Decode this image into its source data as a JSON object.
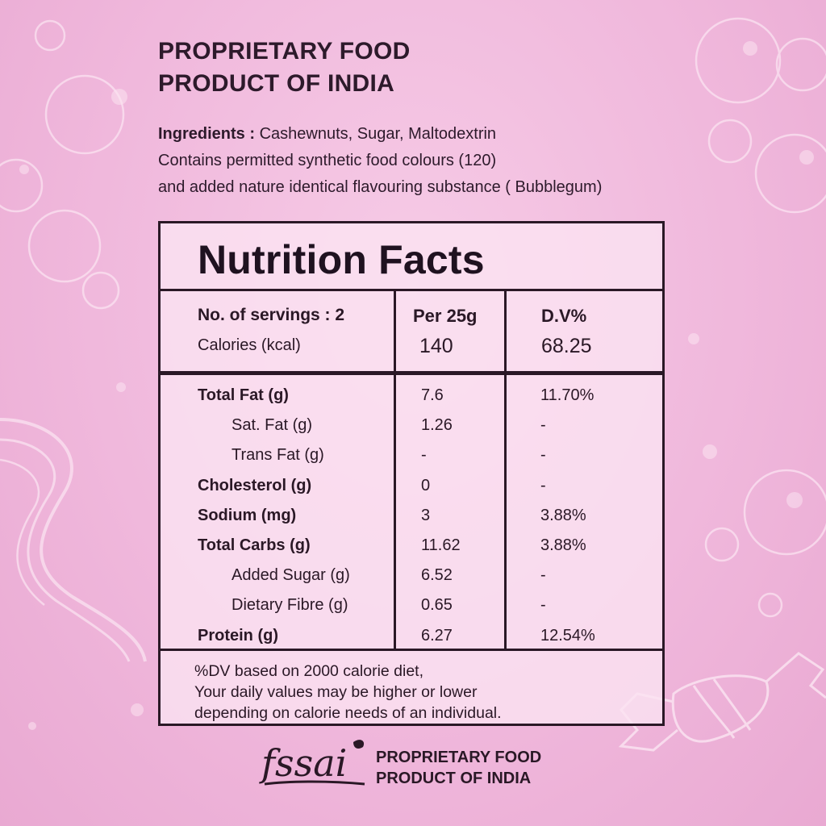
{
  "header": {
    "line1": "PROPRIETARY FOOD",
    "line2": "PRODUCT OF INDIA"
  },
  "ingredients": {
    "label": "Ingredients :",
    "list": " Cashewnuts, Sugar, Maltodextrin",
    "line2": "Contains permitted synthetic food colours (120)",
    "line3": "and added nature identical flavouring substance ( Bubblegum)"
  },
  "nutrition": {
    "title": "Nutrition Facts",
    "servings_label": "No. of servings : 2",
    "per_label": "Per 25g",
    "dv_label": "D.V%",
    "calories_label": "Calories (kcal)",
    "calories_value": "140",
    "calories_dv": "68.25",
    "rows": [
      {
        "label": "Total Fat (g)",
        "value": "7.6",
        "dv": "11.70%",
        "bold": true
      },
      {
        "label": "Sat. Fat (g)",
        "value": "1.26",
        "dv": "-",
        "bold": false
      },
      {
        "label": "Trans Fat (g)",
        "value": "-",
        "dv": "-",
        "bold": false
      },
      {
        "label": "Cholesterol (g)",
        "value": "0",
        "dv": "-",
        "bold": true
      },
      {
        "label": "Sodium (mg)",
        "value": "3",
        "dv": "3.88%",
        "bold": true
      },
      {
        "label": "Total Carbs (g)",
        "value": "11.62",
        "dv": "3.88%",
        "bold": true
      },
      {
        "label": "Added Sugar (g)",
        "value": "6.52",
        "dv": "-",
        "bold": false
      },
      {
        "label": "Dietary Fibre (g)",
        "value": "0.65",
        "dv": "-",
        "bold": false
      },
      {
        "label": "Protein (g)",
        "value": "6.27",
        "dv": "12.54%",
        "bold": true
      }
    ],
    "footnote": {
      "line1": "%DV based on 2000 calorie diet,",
      "line2": "Your daily values may be higher or lower",
      "line3": "depending on calorie needs of an individual."
    }
  },
  "footer": {
    "logo_text": "fssai",
    "line1": "PROPRIETARY FOOD",
    "line2": "PRODUCT OF INDIA"
  },
  "colors": {
    "background": "#f0b8dc",
    "ink": "#2a1826",
    "panel": "#fbe4f2"
  },
  "icons": [
    "bubble-decoration",
    "candy-decoration",
    "fssai-logo"
  ]
}
